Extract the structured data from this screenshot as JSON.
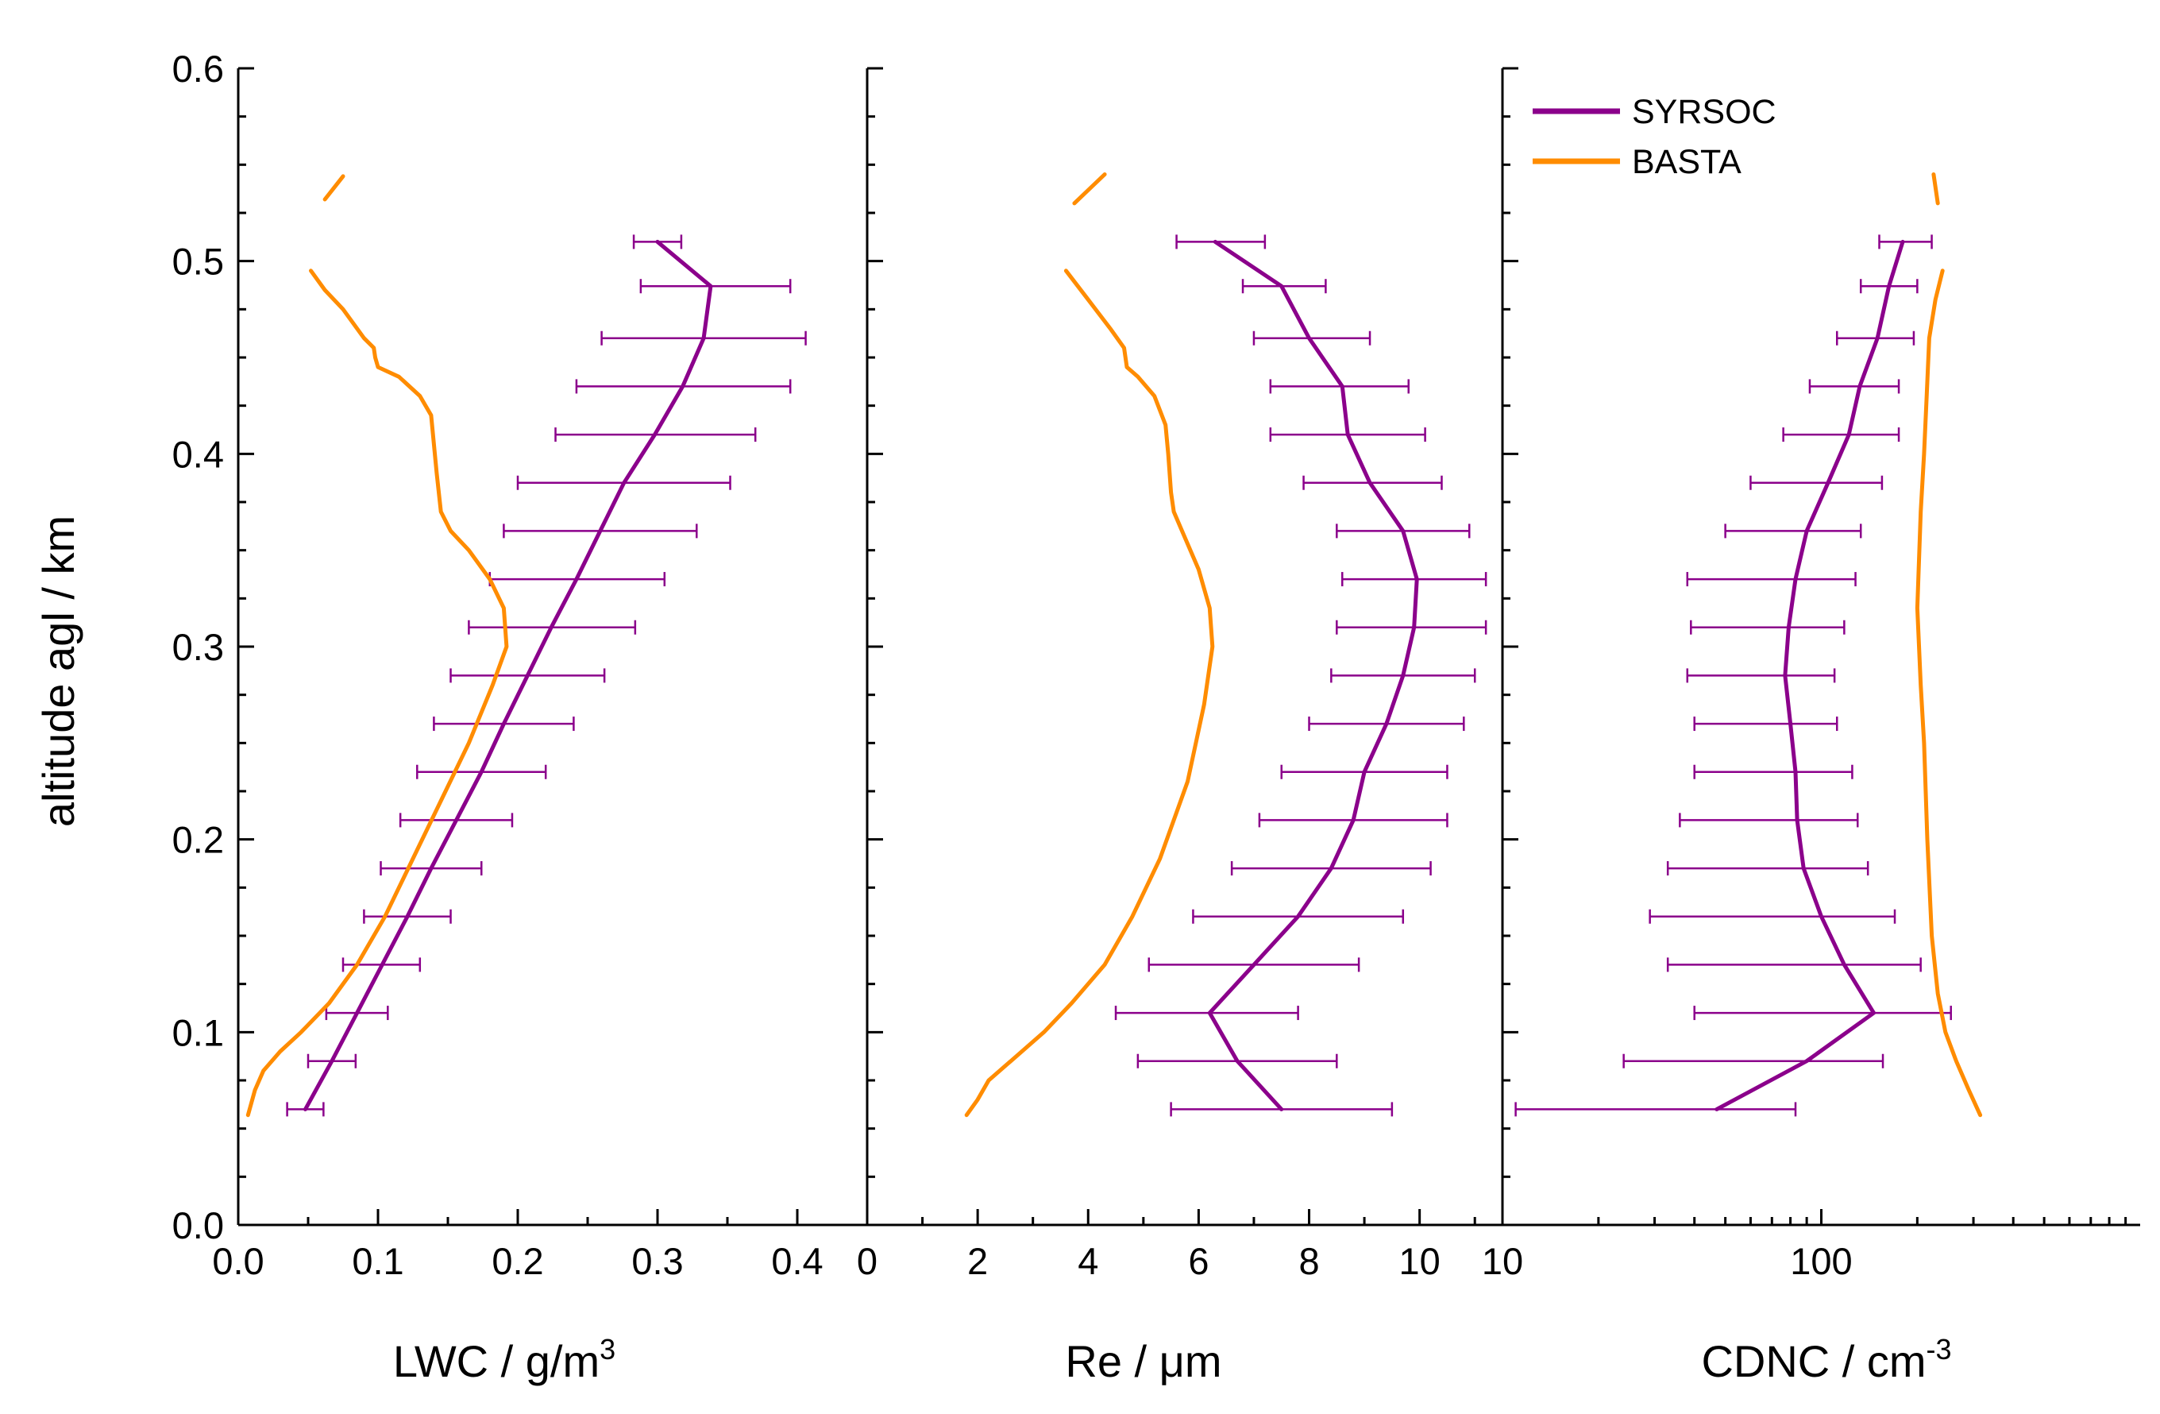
{
  "colors": {
    "syrsoc": "#8B008B",
    "basta": "#FF8C00",
    "axis": "#000000"
  },
  "y_axis": {
    "label": "altitude agl / km",
    "ylim": [
      0.0,
      0.6
    ],
    "ticks": [
      0.0,
      0.1,
      0.2,
      0.3,
      0.4,
      0.5,
      0.6
    ],
    "tick_labels": [
      "0.0",
      "0.1",
      "0.2",
      "0.3",
      "0.4",
      "0.5",
      "0.6"
    ]
  },
  "legend": {
    "placement": "top-right of third panel",
    "items": [
      {
        "name": "SYRSOC",
        "color": "#8B008B"
      },
      {
        "name": "BASTA",
        "color": "#FF8C00"
      }
    ]
  },
  "chart_data": [
    {
      "type": "line",
      "xlabel": "LWC / g/m",
      "xlabel_sup": "3",
      "xscale": "linear",
      "xlim": [
        0.0,
        0.45
      ],
      "xticks": [
        0.0,
        0.1,
        0.2,
        0.3,
        0.4
      ],
      "xtick_labels": [
        "0.0",
        "0.1",
        "0.2",
        "0.3",
        "0.4"
      ],
      "series": [
        {
          "name": "SYRSOC",
          "error_bars": true,
          "points": [
            {
              "y": 0.06,
              "x": 0.048,
              "xmin": 0.035,
              "xmax": 0.061
            },
            {
              "y": 0.085,
              "x": 0.067,
              "xmin": 0.05,
              "xmax": 0.084
            },
            {
              "y": 0.11,
              "x": 0.085,
              "xmin": 0.063,
              "xmax": 0.107
            },
            {
              "y": 0.135,
              "x": 0.103,
              "xmin": 0.075,
              "xmax": 0.13
            },
            {
              "y": 0.16,
              "x": 0.121,
              "xmin": 0.09,
              "xmax": 0.152
            },
            {
              "y": 0.185,
              "x": 0.138,
              "xmin": 0.102,
              "xmax": 0.174
            },
            {
              "y": 0.21,
              "x": 0.156,
              "xmin": 0.116,
              "xmax": 0.196
            },
            {
              "y": 0.235,
              "x": 0.174,
              "xmin": 0.128,
              "xmax": 0.22
            },
            {
              "y": 0.26,
              "x": 0.19,
              "xmin": 0.14,
              "xmax": 0.24
            },
            {
              "y": 0.285,
              "x": 0.207,
              "xmin": 0.152,
              "xmax": 0.262
            },
            {
              "y": 0.31,
              "x": 0.224,
              "xmin": 0.165,
              "xmax": 0.284
            },
            {
              "y": 0.335,
              "x": 0.242,
              "xmin": 0.18,
              "xmax": 0.305
            },
            {
              "y": 0.36,
              "x": 0.259,
              "xmin": 0.19,
              "xmax": 0.328
            },
            {
              "y": 0.385,
              "x": 0.276,
              "xmin": 0.2,
              "xmax": 0.352
            },
            {
              "y": 0.41,
              "x": 0.298,
              "xmin": 0.227,
              "xmax": 0.37
            },
            {
              "y": 0.435,
              "x": 0.318,
              "xmin": 0.242,
              "xmax": 0.395
            },
            {
              "y": 0.46,
              "x": 0.333,
              "xmin": 0.26,
              "xmax": 0.406
            },
            {
              "y": 0.487,
              "x": 0.338,
              "xmin": 0.288,
              "xmax": 0.395
            },
            {
              "y": 0.51,
              "x": 0.3,
              "xmin": 0.283,
              "xmax": 0.317
            }
          ]
        },
        {
          "name": "BASTA",
          "segments": [
            [
              [
                0.007,
                0.057
              ],
              [
                0.012,
                0.07
              ],
              [
                0.018,
                0.08
              ],
              [
                0.03,
                0.09
              ],
              [
                0.045,
                0.1
              ],
              [
                0.065,
                0.115
              ],
              [
                0.085,
                0.135
              ],
              [
                0.105,
                0.16
              ],
              [
                0.125,
                0.19
              ],
              [
                0.145,
                0.22
              ],
              [
                0.165,
                0.25
              ],
              [
                0.182,
                0.28
              ],
              [
                0.192,
                0.3
              ],
              [
                0.19,
                0.32
              ],
              [
                0.18,
                0.335
              ],
              [
                0.165,
                0.35
              ],
              [
                0.152,
                0.36
              ],
              [
                0.145,
                0.37
              ],
              [
                0.142,
                0.39
              ],
              [
                0.138,
                0.42
              ],
              [
                0.13,
                0.43
              ],
              [
                0.115,
                0.44
              ],
              [
                0.1,
                0.445
              ],
              [
                0.098,
                0.45
              ],
              [
                0.097,
                0.455
              ],
              [
                0.09,
                0.46
              ],
              [
                0.075,
                0.475
              ],
              [
                0.062,
                0.485
              ],
              [
                0.052,
                0.495
              ]
            ],
            [
              [
                0.062,
                0.532
              ],
              [
                0.075,
                0.544
              ]
            ]
          ]
        }
      ]
    },
    {
      "type": "line",
      "xlabel": "Re / μm",
      "xscale": "linear",
      "xlim": [
        0,
        11.5
      ],
      "xticks": [
        0,
        2,
        4,
        6,
        8,
        10
      ],
      "xtick_labels": [
        "0",
        "2",
        "4",
        "6",
        "8",
        "10"
      ],
      "series": [
        {
          "name": "SYRSOC",
          "error_bars": true,
          "points": [
            {
              "y": 0.06,
              "x": 7.5,
              "xmin": 5.5,
              "xmax": 9.5
            },
            {
              "y": 0.085,
              "x": 6.7,
              "xmin": 4.9,
              "xmax": 8.5
            },
            {
              "y": 0.11,
              "x": 6.2,
              "xmin": 4.5,
              "xmax": 7.8
            },
            {
              "y": 0.135,
              "x": 7.0,
              "xmin": 5.1,
              "xmax": 8.9
            },
            {
              "y": 0.16,
              "x": 7.8,
              "xmin": 5.9,
              "xmax": 9.7
            },
            {
              "y": 0.185,
              "x": 8.4,
              "xmin": 6.6,
              "xmax": 10.2
            },
            {
              "y": 0.21,
              "x": 8.8,
              "xmin": 7.1,
              "xmax": 10.5
            },
            {
              "y": 0.235,
              "x": 9.0,
              "xmin": 7.5,
              "xmax": 10.5
            },
            {
              "y": 0.26,
              "x": 9.4,
              "xmin": 8.0,
              "xmax": 10.8
            },
            {
              "y": 0.285,
              "x": 9.7,
              "xmin": 8.4,
              "xmax": 11.0
            },
            {
              "y": 0.31,
              "x": 9.9,
              "xmin": 8.5,
              "xmax": 11.2
            },
            {
              "y": 0.335,
              "x": 9.95,
              "xmin": 8.6,
              "xmax": 11.2
            },
            {
              "y": 0.36,
              "x": 9.7,
              "xmin": 8.5,
              "xmax": 10.9
            },
            {
              "y": 0.385,
              "x": 9.1,
              "xmin": 7.9,
              "xmax": 10.4
            },
            {
              "y": 0.41,
              "x": 8.7,
              "xmin": 7.3,
              "xmax": 10.1
            },
            {
              "y": 0.435,
              "x": 8.6,
              "xmin": 7.3,
              "xmax": 9.8
            },
            {
              "y": 0.46,
              "x": 8.0,
              "xmin": 7.0,
              "xmax": 9.1
            },
            {
              "y": 0.487,
              "x": 7.5,
              "xmin": 6.8,
              "xmax": 8.3
            },
            {
              "y": 0.51,
              "x": 6.3,
              "xmin": 5.6,
              "xmax": 7.2
            }
          ]
        },
        {
          "name": "BASTA",
          "segments": [
            [
              [
                1.8,
                0.057
              ],
              [
                2.0,
                0.065
              ],
              [
                2.2,
                0.075
              ],
              [
                2.6,
                0.085
              ],
              [
                3.2,
                0.1
              ],
              [
                3.7,
                0.115
              ],
              [
                4.3,
                0.135
              ],
              [
                4.8,
                0.16
              ],
              [
                5.3,
                0.19
              ],
              [
                5.8,
                0.23
              ],
              [
                6.1,
                0.27
              ],
              [
                6.25,
                0.3
              ],
              [
                6.2,
                0.32
              ],
              [
                6.0,
                0.34
              ],
              [
                5.7,
                0.36
              ],
              [
                5.55,
                0.37
              ],
              [
                5.5,
                0.38
              ],
              [
                5.45,
                0.4
              ],
              [
                5.4,
                0.415
              ],
              [
                5.2,
                0.43
              ],
              [
                4.9,
                0.44
              ],
              [
                4.7,
                0.445
              ],
              [
                4.65,
                0.455
              ],
              [
                4.4,
                0.465
              ],
              [
                4.0,
                0.48
              ],
              [
                3.6,
                0.495
              ]
            ],
            [
              [
                3.75,
                0.53
              ],
              [
                4.3,
                0.545
              ]
            ]
          ]
        }
      ]
    },
    {
      "type": "line",
      "xlabel": "CDNC / cm",
      "xlabel_sup": "-3",
      "xscale": "log",
      "xlim": [
        10,
        1000
      ],
      "xticks": [
        10,
        100
      ],
      "xtick_labels": [
        "10",
        "100"
      ],
      "series": [
        {
          "name": "SYRSOC",
          "error_bars": true,
          "points": [
            {
              "y": 0.06,
              "x": 47,
              "xmin": 11,
              "xmax": 83
            },
            {
              "y": 0.085,
              "x": 90,
              "xmin": 24,
              "xmax": 156
            },
            {
              "y": 0.11,
              "x": 146,
              "xmin": 40,
              "xmax": 255
            },
            {
              "y": 0.135,
              "x": 118,
              "xmin": 33,
              "xmax": 205
            },
            {
              "y": 0.16,
              "x": 100,
              "xmin": 29,
              "xmax": 170
            },
            {
              "y": 0.185,
              "x": 88,
              "xmin": 33,
              "xmax": 140
            },
            {
              "y": 0.21,
              "x": 84,
              "xmin": 36,
              "xmax": 130
            },
            {
              "y": 0.235,
              "x": 83,
              "xmin": 40,
              "xmax": 125
            },
            {
              "y": 0.26,
              "x": 80,
              "xmin": 40,
              "xmax": 112
            },
            {
              "y": 0.285,
              "x": 77,
              "xmin": 38,
              "xmax": 110
            },
            {
              "y": 0.31,
              "x": 79,
              "xmin": 39,
              "xmax": 118
            },
            {
              "y": 0.335,
              "x": 83,
              "xmin": 38,
              "xmax": 128
            },
            {
              "y": 0.36,
              "x": 90,
              "xmin": 50,
              "xmax": 133
            },
            {
              "y": 0.385,
              "x": 105,
              "xmin": 60,
              "xmax": 155
            },
            {
              "y": 0.41,
              "x": 122,
              "xmin": 76,
              "xmax": 175
            },
            {
              "y": 0.435,
              "x": 132,
              "xmin": 92,
              "xmax": 175
            },
            {
              "y": 0.46,
              "x": 150,
              "xmin": 112,
              "xmax": 195
            },
            {
              "y": 0.487,
              "x": 163,
              "xmin": 133,
              "xmax": 200
            },
            {
              "y": 0.51,
              "x": 180,
              "xmin": 152,
              "xmax": 222
            }
          ]
        },
        {
          "name": "BASTA",
          "segments": [
            [
              [
                315,
                0.057
              ],
              [
                290,
                0.07
              ],
              [
                265,
                0.085
              ],
              [
                245,
                0.1
              ],
              [
                232,
                0.12
              ],
              [
                222,
                0.15
              ],
              [
                215,
                0.2
              ],
              [
                210,
                0.25
              ],
              [
                205,
                0.28
              ],
              [
                200,
                0.32
              ],
              [
                202,
                0.34
              ],
              [
                205,
                0.37
              ],
              [
                210,
                0.4
              ],
              [
                214,
                0.43
              ],
              [
                218,
                0.46
              ],
              [
                228,
                0.48
              ],
              [
                240,
                0.495
              ]
            ],
            [
              [
                232,
                0.53
              ],
              [
                225,
                0.545
              ]
            ]
          ]
        }
      ]
    }
  ]
}
